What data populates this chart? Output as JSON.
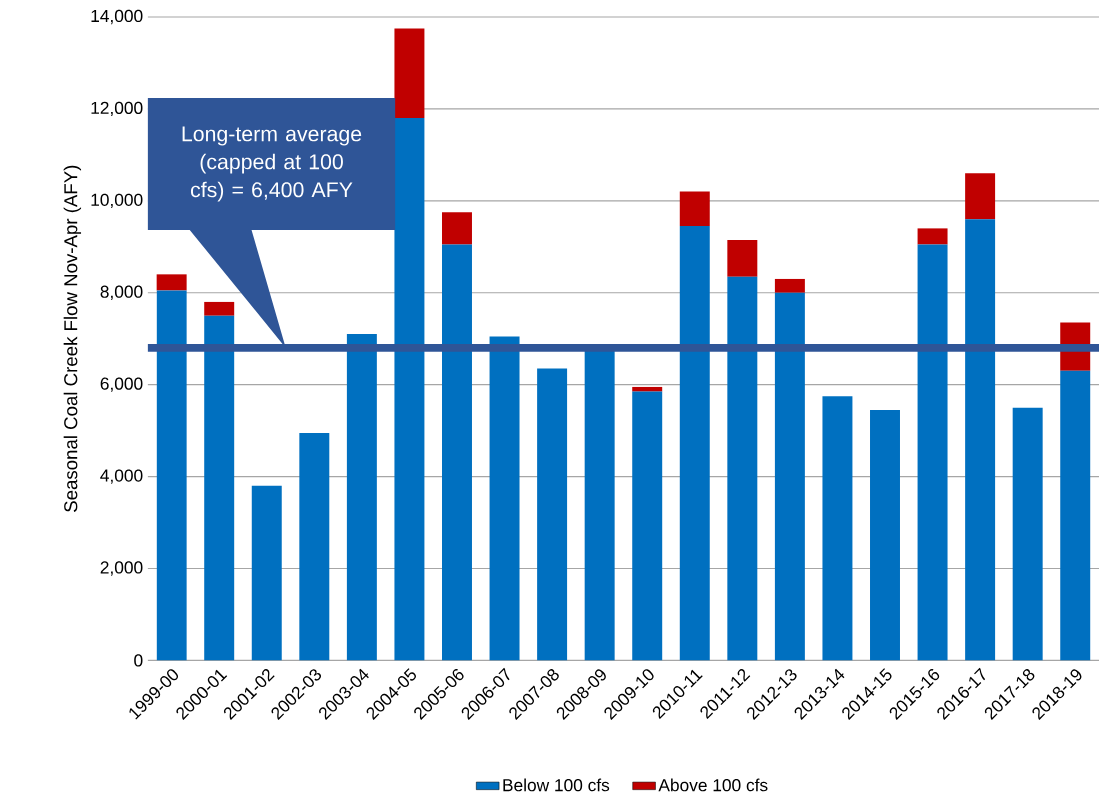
{
  "chart_data": {
    "type": "bar",
    "stacked": true,
    "ylabel": "Seasonal Coal Creek Flow Nov-Apr (AFY)",
    "categories": [
      "1999-00",
      "2000-01",
      "2001-02",
      "2002-03",
      "2003-04",
      "2004-05",
      "2005-06",
      "2006-07",
      "2007-08",
      "2008-09",
      "2009-10",
      "2010-11",
      "2011-12",
      "2012-13",
      "2013-14",
      "2014-15",
      "2015-16",
      "2016-17",
      "2017-18",
      "2018-19"
    ],
    "series": [
      {
        "name": "Below 100 cfs",
        "color": "#0070c0",
        "values": [
          8050,
          7500,
          3800,
          4950,
          7100,
          11800,
          9050,
          7050,
          6350,
          6750,
          5850,
          9450,
          8350,
          8000,
          5750,
          5450,
          9050,
          9600,
          5500,
          6300
        ]
      },
      {
        "name": "Above 100 cfs",
        "color": "#c00000",
        "values": [
          350,
          300,
          0,
          0,
          0,
          1950,
          700,
          0,
          0,
          0,
          100,
          750,
          800,
          300,
          0,
          0,
          350,
          1000,
          0,
          1050
        ]
      }
    ],
    "ylim": [
      0,
      14000
    ],
    "yticks": [
      0,
      {
        "value": 2000,
        "label": "2,000"
      },
      {
        "value": 4000,
        "label": "4,000"
      },
      {
        "value": 6000,
        "label": "6,000"
      },
      {
        "value": 8000,
        "label": "8,000"
      },
      {
        "value": 10000,
        "label": "10,000"
      },
      {
        "value": 12000,
        "label": "12,000"
      },
      {
        "value": 14000,
        "label": "14,000"
      }
    ],
    "grid": "y",
    "legend": "bottom",
    "ref_lines": [
      {
        "axis": "y",
        "value": 6800,
        "color": "#2f5597"
      }
    ],
    "annotations": [
      "Long-term average (capped at 100 cfs) = 6,400 AFY"
    ]
  }
}
